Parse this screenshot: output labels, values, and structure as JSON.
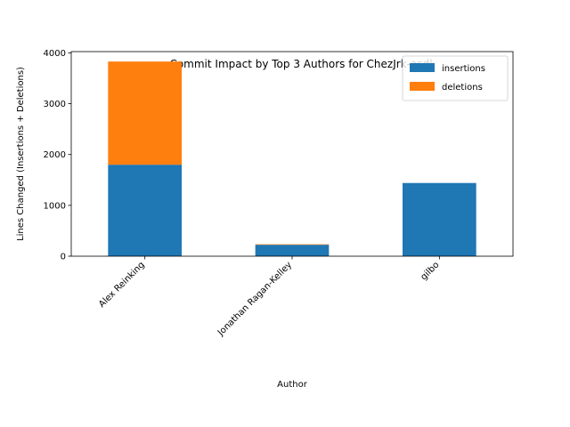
{
  "chart_data": {
    "type": "bar",
    "stacked": true,
    "title": "Commit Impact by Top 3 Authors for ChezJrk-asdl",
    "xlabel": "Author",
    "ylabel": "Lines Changed (Insertions + Deletions)",
    "categories": [
      "Alex Reinking",
      "Jonathan Ragan-Kelley",
      "gilbo"
    ],
    "series": [
      {
        "name": "insertions",
        "color": "#1f77b4",
        "values": [
          1800,
          225,
          1440
        ]
      },
      {
        "name": "deletions",
        "color": "#ff7f0e",
        "values": [
          2030,
          10,
          0
        ]
      }
    ],
    "ylim": [
      0,
      4025
    ],
    "yticks": [
      0,
      1000,
      2000,
      3000,
      4000
    ],
    "grid": false,
    "legend_position": "top-right"
  }
}
